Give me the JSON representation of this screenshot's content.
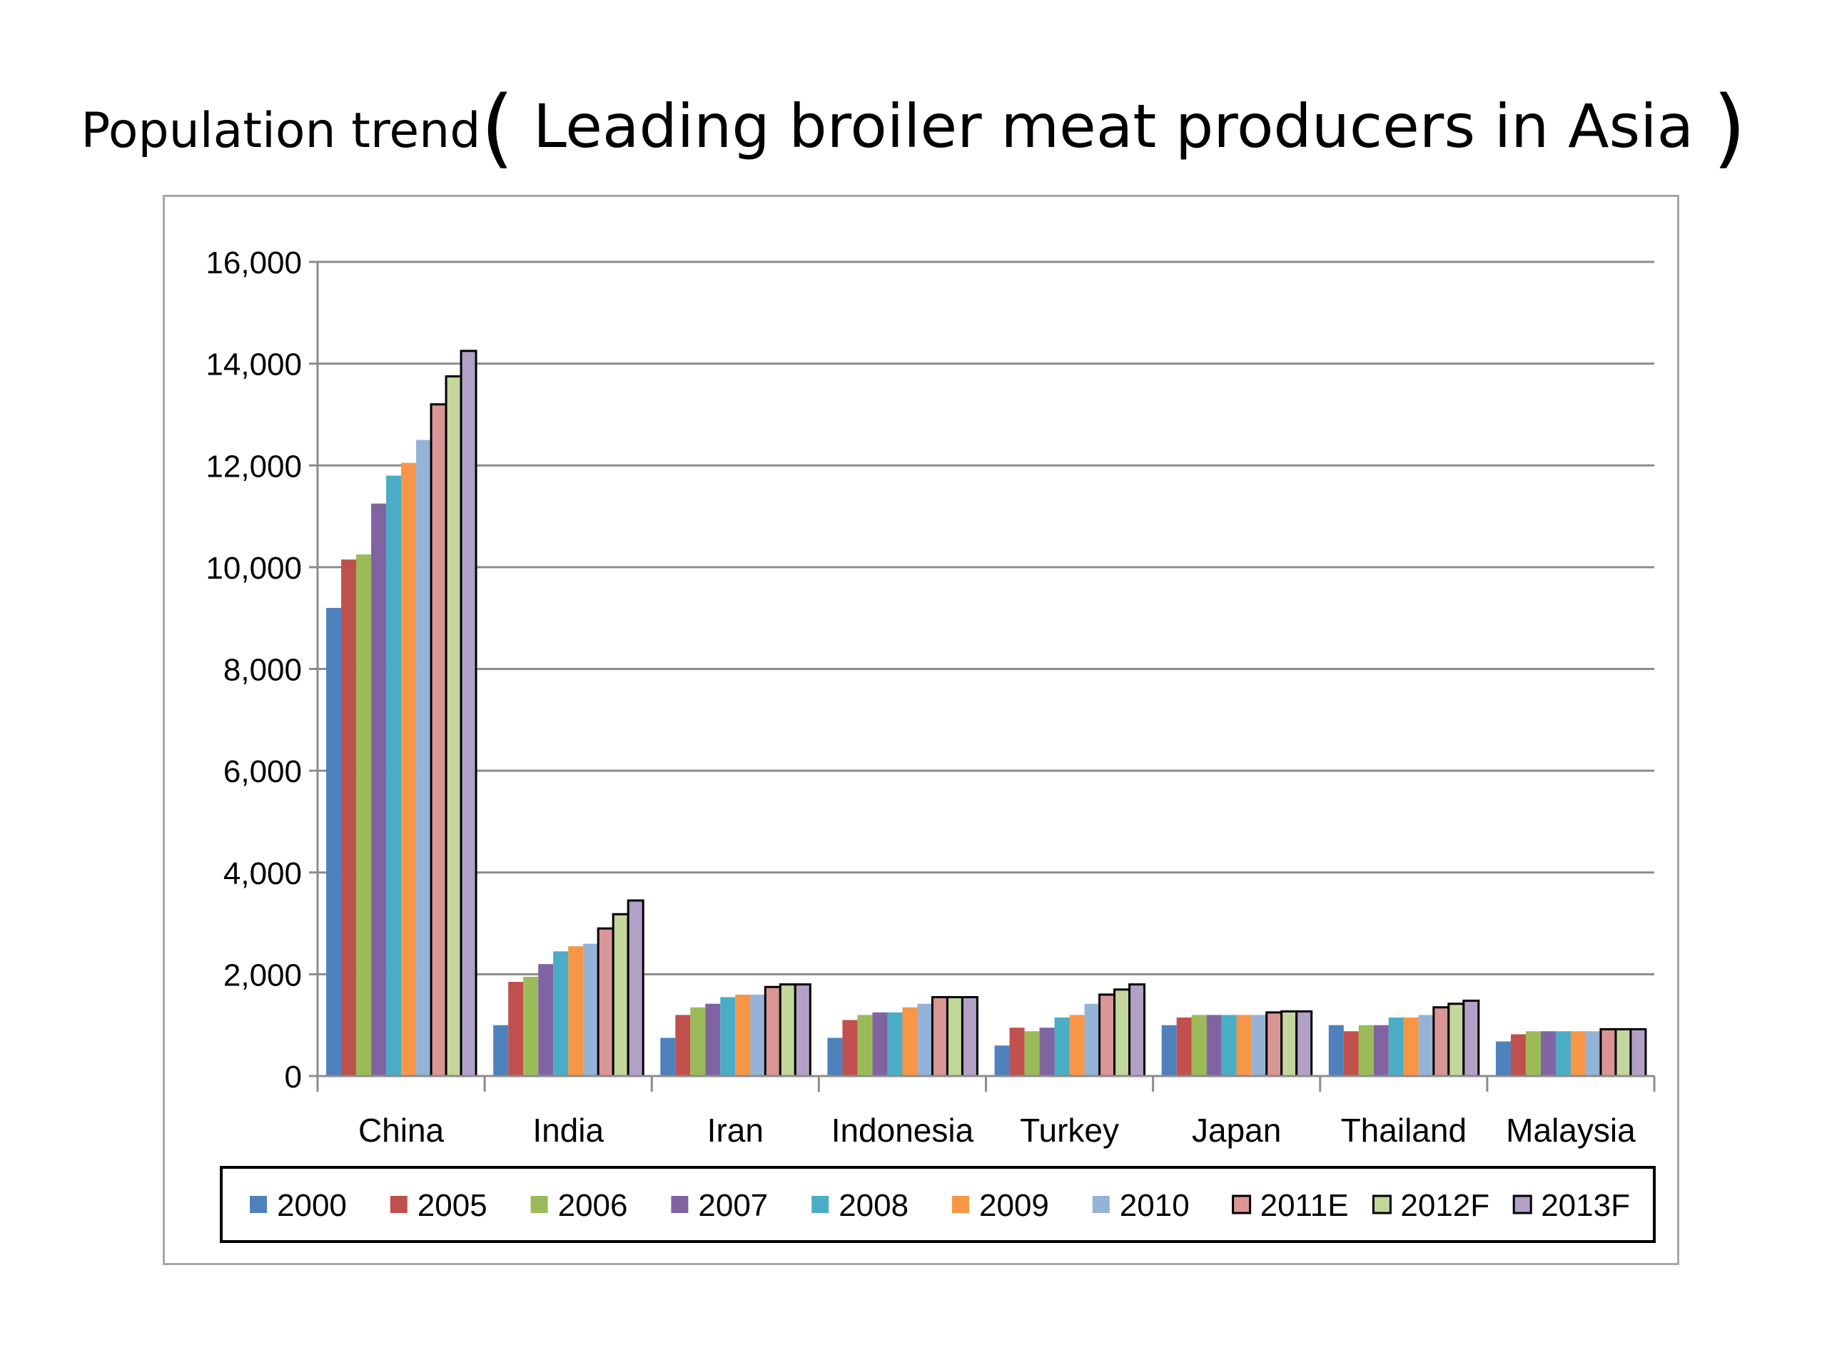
{
  "title": {
    "prefix": "Population trend",
    "open_paren": "(",
    "main": " Leading broiler meat producers in Asia ",
    "close_paren": ")"
  },
  "chart_data": {
    "type": "bar",
    "title": "Population trend( Leading broiler meat producers in Asia )",
    "xlabel": "",
    "ylabel": "",
    "ylim": [
      0,
      16000
    ],
    "yticks": [
      0,
      2000,
      4000,
      6000,
      8000,
      10000,
      12000,
      14000,
      16000
    ],
    "ytick_labels": [
      "0",
      "2,000",
      "4,000",
      "6,000",
      "8,000",
      "10,000",
      "12,000",
      "14,000",
      "16,000"
    ],
    "grid": true,
    "legend_position": "bottom",
    "categories": [
      "China",
      "India",
      "Iran",
      "Indonesia",
      "Turkey",
      "Japan",
      "Thailand",
      "Malaysia"
    ],
    "series": [
      {
        "name": "2000",
        "color": "#4f81bd",
        "outlined": false,
        "values": [
          9200,
          1000,
          750,
          750,
          600,
          1000,
          1000,
          680
        ]
      },
      {
        "name": "2005",
        "color": "#c0504d",
        "outlined": false,
        "values": [
          10150,
          1850,
          1200,
          1100,
          950,
          1150,
          880,
          820
        ]
      },
      {
        "name": "2006",
        "color": "#9bbb59",
        "outlined": false,
        "values": [
          10250,
          1950,
          1350,
          1200,
          880,
          1200,
          1000,
          880
        ]
      },
      {
        "name": "2007",
        "color": "#8064a2",
        "outlined": false,
        "values": [
          11250,
          2200,
          1420,
          1250,
          950,
          1200,
          1000,
          880
        ]
      },
      {
        "name": "2008",
        "color": "#4bacc6",
        "outlined": false,
        "values": [
          11800,
          2450,
          1550,
          1250,
          1150,
          1200,
          1150,
          880
        ]
      },
      {
        "name": "2009",
        "color": "#f79646",
        "outlined": false,
        "values": [
          12050,
          2550,
          1600,
          1350,
          1200,
          1200,
          1150,
          880
        ]
      },
      {
        "name": "2010",
        "color": "#95b3d7",
        "outlined": false,
        "values": [
          12500,
          2600,
          1600,
          1420,
          1420,
          1200,
          1200,
          880
        ]
      },
      {
        "name": "2011E",
        "color": "#d99694",
        "outlined": true,
        "values": [
          13200,
          2900,
          1750,
          1550,
          1600,
          1250,
          1350,
          920
        ]
      },
      {
        "name": "2012F",
        "color": "#c3d69b",
        "outlined": true,
        "values": [
          13750,
          3180,
          1800,
          1550,
          1700,
          1270,
          1420,
          920
        ]
      },
      {
        "name": "2013F",
        "color": "#b2a1c7",
        "outlined": true,
        "values": [
          14250,
          3450,
          1800,
          1550,
          1800,
          1270,
          1480,
          920
        ]
      }
    ]
  }
}
